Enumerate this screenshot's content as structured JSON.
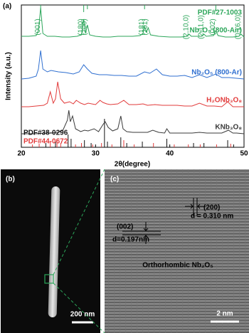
{
  "chart_data": {
    "type": "line",
    "panel_label": "(a)",
    "x_label": "2θ(degree)",
    "y_label": "Intensity (a.u.)",
    "xlim": [
      20,
      50
    ],
    "ylim": [
      0,
      100
    ],
    "xticks": [
      20,
      30,
      40,
      50
    ],
    "series": [
      {
        "name": "PDF#27-1003",
        "color": "#2ca65a",
        "type": "stick-down",
        "x": [
          22.6,
          28.4,
          28.9,
          36.6,
          46.2
        ],
        "values": [
          95,
          95,
          97,
          97,
          96
        ]
      },
      {
        "name": "Nb₂O₅ (800-Air)",
        "color": "#2ca65a",
        "type": "line",
        "x": [
          20,
          21,
          22,
          22.3,
          22.6,
          22.9,
          23.5,
          24.5,
          25.5,
          26.5,
          27.5,
          28.1,
          28.4,
          28.65,
          28.9,
          29.2,
          30,
          31,
          32,
          33,
          34,
          35,
          36,
          36.4,
          36.6,
          36.85,
          37.1,
          37.4,
          38.5,
          40,
          41.5,
          42.3,
          42.6,
          42.9,
          44.3,
          44.6,
          44.9,
          45.9,
          46.2,
          46.5,
          47.5,
          48.5,
          49.3,
          49.6,
          49.9,
          50
        ],
        "values": [
          78,
          78,
          78.5,
          82,
          98,
          80,
          78,
          78,
          77.5,
          77.5,
          78,
          79,
          90,
          80,
          86,
          79,
          78,
          77.5,
          77.5,
          78,
          78,
          78,
          78.5,
          80,
          85,
          81,
          84,
          79,
          78,
          77.5,
          77.5,
          78,
          79.5,
          78,
          78,
          79.5,
          78,
          78.5,
          82,
          78.5,
          77.5,
          77.5,
          78,
          79.5,
          78,
          77.5
        ]
      },
      {
        "name": "Nb₂O₅ (800-Ar)",
        "color": "#2f6fd0",
        "type": "line",
        "x": [
          20,
          21,
          22,
          22.3,
          22.6,
          22.9,
          23.5,
          24,
          25,
          26,
          27,
          27.8,
          28.4,
          28.9,
          29.5,
          30.5,
          31.5,
          32.5,
          33.5,
          34.5,
          35.5,
          36.6,
          37.3,
          38.2,
          39,
          40,
          41,
          42,
          43,
          44,
          45,
          46.2,
          47,
          48,
          49,
          50
        ],
        "values": [
          48,
          48.5,
          50,
          55,
          68,
          55,
          53,
          54,
          53,
          52.5,
          51.5,
          53,
          58,
          55,
          52,
          51,
          51,
          50.5,
          50.5,
          50,
          50,
          53,
          52,
          55,
          51,
          50,
          50,
          50.5,
          49,
          51,
          49,
          51.5,
          49,
          49,
          48.5,
          48
        ]
      },
      {
        "name": "H₂ONb₃O₈",
        "color": "#e23b3b",
        "type": "line",
        "x": [
          20,
          21,
          22,
          23,
          23.5,
          23.9,
          24.3,
          24.6,
          24.9,
          25.3,
          25.8,
          26.5,
          27,
          27.4,
          28,
          28.5,
          29,
          30,
          30.6,
          31,
          31.5,
          32,
          33,
          33.8,
          34.5,
          35.5,
          36.4,
          37,
          38,
          39,
          40,
          41,
          42,
          43,
          44,
          45,
          46,
          47,
          47.8,
          48.5,
          49,
          50
        ],
        "values": [
          28.5,
          28.5,
          29,
          29.5,
          31,
          39,
          31,
          34,
          46,
          34,
          31,
          32,
          30.5,
          33,
          31,
          30,
          31,
          30,
          33,
          31.5,
          30.5,
          30,
          30.5,
          33,
          30,
          30,
          30.5,
          29.5,
          30,
          29.5,
          29.5,
          29.5,
          29,
          29,
          31,
          29,
          29,
          28.5,
          32,
          28.5,
          28.5,
          28.5
        ]
      },
      {
        "name": "KNb₃O₈",
        "color": "#3a3a3a",
        "type": "line",
        "x": [
          20,
          22,
          23,
          24,
          25,
          25.6,
          26.2,
          26.4,
          26.6,
          26.9,
          27.3,
          28,
          28.5,
          29,
          29.8,
          30.4,
          31,
          31.3,
          31.7,
          32.3,
          33,
          33.4,
          33.7,
          34.2,
          35,
          36,
          37,
          37.7,
          38.5,
          39.3,
          39.6,
          40,
          41,
          42,
          43,
          44,
          45,
          46,
          47,
          47.9,
          48.5,
          49,
          50
        ],
        "values": [
          9.5,
          9.5,
          10,
          10,
          10.5,
          12,
          19,
          26,
          18,
          22,
          13,
          11,
          12,
          11.5,
          13,
          11,
          16,
          18,
          14,
          11.5,
          13,
          22,
          13,
          11,
          10.5,
          10.5,
          10.5,
          12,
          10.5,
          10,
          13,
          10,
          10,
          10,
          10,
          10.5,
          10,
          10,
          10,
          12,
          10,
          10,
          9.5
        ]
      },
      {
        "name": "PDF#38-0296",
        "color": "#111111",
        "type": "stick",
        "x": [
          23.3,
          24.6,
          26.3,
          26.7,
          28.5,
          29.4,
          31.2,
          31.6,
          33.4,
          34.2,
          36.3,
          39.6,
          43.2,
          44.6,
          47.8,
          48.6
        ],
        "values": [
          3,
          4,
          9,
          6,
          5,
          3,
          20,
          4,
          7,
          3,
          4,
          6,
          3,
          3,
          5,
          2
        ]
      },
      {
        "name": "PDF#44-0672",
        "color": "#e23b3b",
        "type": "stick",
        "x": [
          21.5,
          22.4,
          23.9,
          24.8,
          25.3,
          27.3,
          28.1,
          29.6,
          30.8,
          32.2,
          33.8,
          35.2,
          37.8,
          40.6,
          42.5,
          44.1,
          46.3,
          48.2
        ],
        "values": [
          2,
          2.5,
          4,
          6,
          3,
          2,
          3,
          2,
          3,
          2,
          5,
          2,
          3,
          2,
          2,
          2,
          2,
          2.5
        ]
      }
    ],
    "peak_labels": [
      {
        "label": "(001)",
        "x": 22.6
      },
      {
        "label": "(180)",
        "x": 28.4
      },
      {
        "label": "(200)",
        "x": 28.9
      },
      {
        "label": "(181)",
        "x": 36.6
      },
      {
        "label": "(201)",
        "x": 37.1
      },
      {
        "label": "(2,10,0)",
        "x": 42.6
      },
      {
        "label": "(2,11,0)",
        "x": 44.6
      },
      {
        "label": "(002)",
        "x": 46.2
      },
      {
        "label": "(0,16,0)",
        "x": 49.6
      }
    ]
  },
  "panel_b": {
    "label": "(b)",
    "scale_bar": "200 nm"
  },
  "panel_c": {
    "label": "(c)",
    "plane_1": "(200)",
    "spacing_1": "d = 0.310 nm",
    "plane_2": "(002)",
    "spacing_2": "d=0.197nm",
    "phase": "Orthorhombic Nb₂O₅",
    "scale_bar": "2 nm"
  }
}
